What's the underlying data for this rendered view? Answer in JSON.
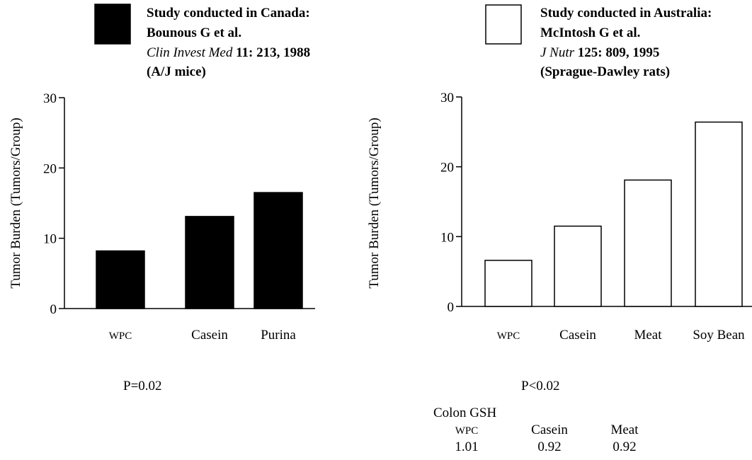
{
  "colors": {
    "fill_left": "#000000",
    "fill_right": "#ffffff",
    "stroke": "#000000"
  },
  "chart_data": [
    {
      "type": "bar",
      "legend": {
        "title": "Study conducted in Canada:",
        "authors": "Bounous G et al.",
        "journal": "Clin Invest Med",
        "journal_rest": "11: 213, 1988",
        "subject": "(A/J mice)"
      },
      "ylabel": "Tumor Burden (Tumors/Group)",
      "ylim": [
        0,
        30
      ],
      "yticks": [
        "0",
        "10",
        "20",
        "30"
      ],
      "categories": [
        "WPC",
        "Casein",
        "Purina"
      ],
      "values": [
        8.2,
        13.1,
        16.5
      ],
      "fill": "black",
      "pvalue": "P=0.02"
    },
    {
      "type": "bar",
      "legend": {
        "title": "Study conducted in Australia:",
        "authors": "McIntosh G et al.",
        "journal": "J Nutr",
        "journal_rest": "125: 809, 1995",
        "subject": "(Sprague-Dawley rats)"
      },
      "ylabel": "Tumor Burden (Tumors/Group)",
      "ylim": [
        0,
        30
      ],
      "yticks": [
        "0",
        "10",
        "20",
        "30"
      ],
      "categories": [
        "WPC",
        "Casein",
        "Meat",
        "Soy Bean"
      ],
      "values": [
        6.6,
        11.5,
        18.1,
        26.4
      ],
      "fill": "white",
      "pvalue": "P<0.02"
    }
  ],
  "colon_gsh": {
    "title": "Colon GSH",
    "headers": [
      "WPC",
      "Casein",
      "Meat"
    ],
    "values": [
      "1.01",
      "0.92",
      "0.92"
    ]
  }
}
